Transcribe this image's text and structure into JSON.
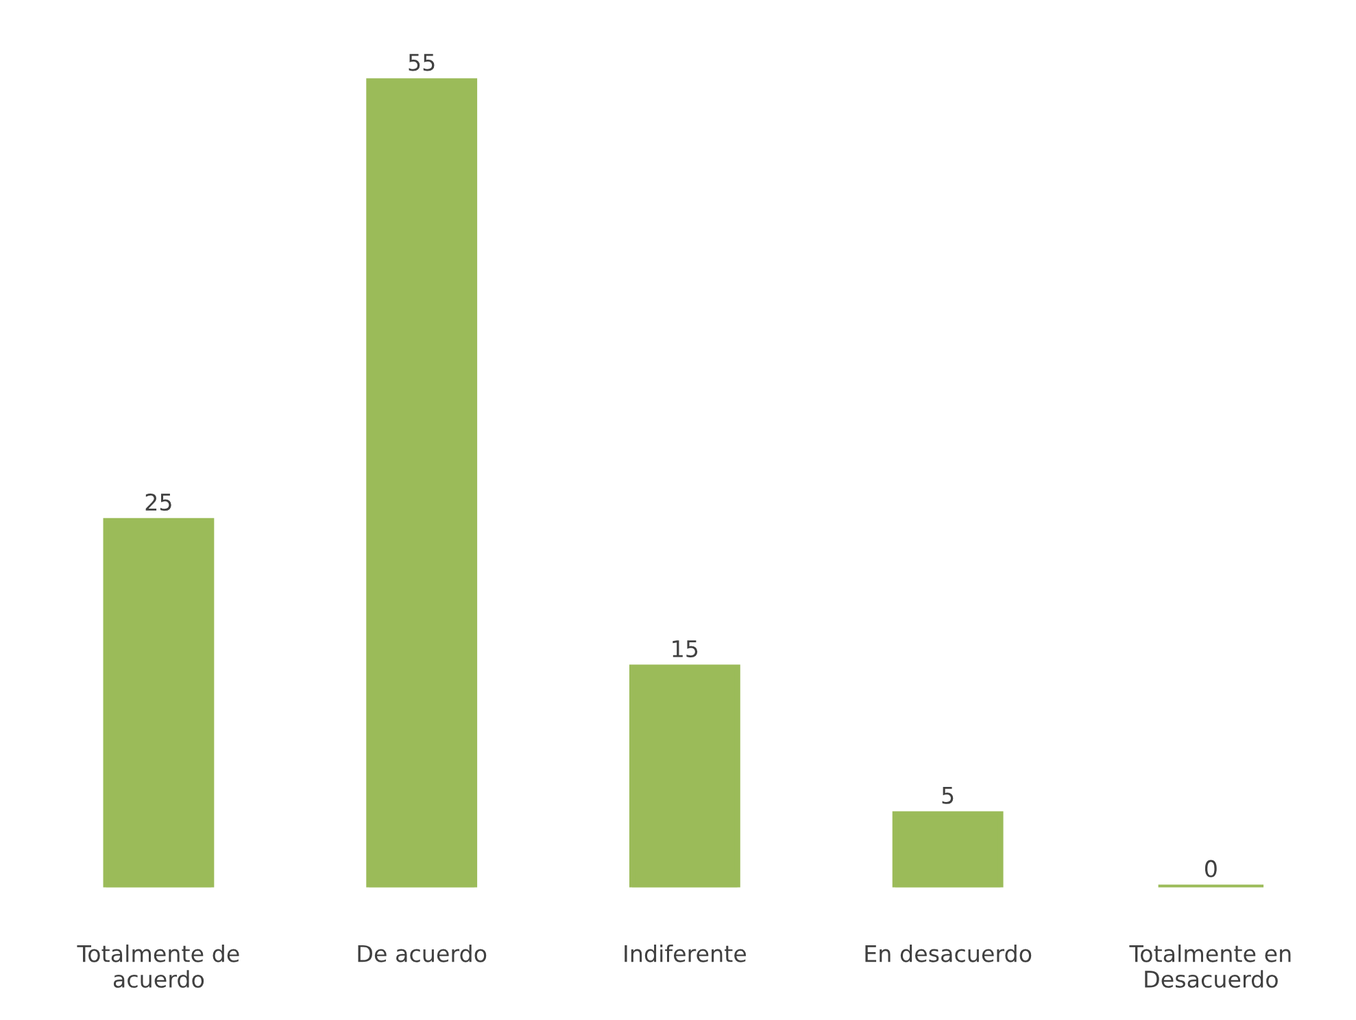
{
  "chart_data": {
    "type": "bar",
    "categories": [
      "Totalmente de\nacuerdo",
      "De acuerdo",
      "Indiferente",
      "En desacuerdo",
      "Totalmente en\nDesacuerdo"
    ],
    "values": [
      25,
      55,
      15,
      5,
      0
    ],
    "color": "#9bbb59",
    "data_labels": true,
    "grid": false,
    "legend": false
  }
}
